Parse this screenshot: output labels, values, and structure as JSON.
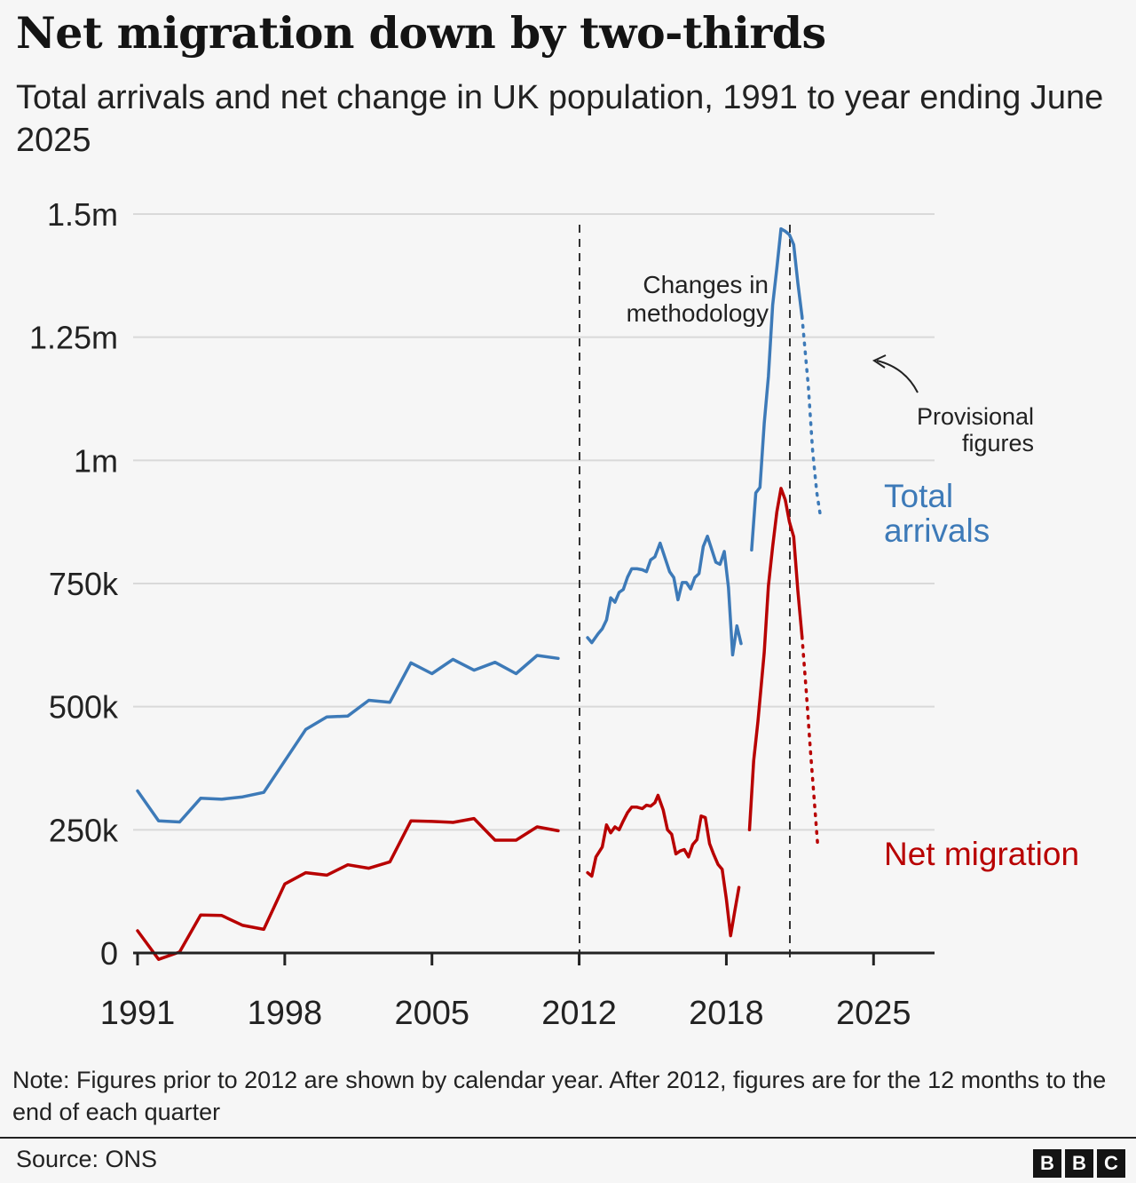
{
  "title": "Net migration down by two-thirds",
  "subtitle": "Total arrivals and net change in UK population, 1991 to year ending June 2025",
  "note": "Note: Figures prior to 2012 are shown by calendar year. After 2012, figures are for the 12 months to the end of each quarter",
  "source": "Source: ONS",
  "logo": [
    "B",
    "B",
    "C"
  ],
  "chart_data": {
    "type": "line",
    "y_ticks": [
      {
        "value": 0,
        "label": "0"
      },
      {
        "value": 250000,
        "label": "250k"
      },
      {
        "value": 500000,
        "label": "500k"
      },
      {
        "value": 750000,
        "label": "750k"
      },
      {
        "value": 1000000,
        "label": "1m"
      },
      {
        "value": 1250000,
        "label": "1.25m"
      },
      {
        "value": 1500000,
        "label": "1.5m"
      }
    ],
    "x_ticks": [
      {
        "value": 1991,
        "label": "1991"
      },
      {
        "value": 1998,
        "label": "1998"
      },
      {
        "value": 2005,
        "label": "2005"
      },
      {
        "value": 2012,
        "label": "2012"
      },
      {
        "value": 2019,
        "label": "2018"
      },
      {
        "value": 2026,
        "label": "2025"
      }
    ],
    "xlim": [
      1991,
      2028.9
    ],
    "ylim": [
      -30000,
      1500000
    ],
    "grid": true,
    "methodology_breaks": [
      2012,
      2022
    ],
    "methodology_label": [
      "Changes in",
      "methodology"
    ],
    "provisional_label": [
      "Provisional",
      "figures"
    ],
    "colors": {
      "arrivals": "#3d7ab8",
      "net": "#b80000",
      "grid": "#d9d9d9",
      "axis": "#222222"
    },
    "series": [
      {
        "name": "Total arrivals",
        "label_lines": [
          "Total",
          "arrivals"
        ],
        "color": "#3d7ab8",
        "segments": [
          [
            [
              1991,
              329000
            ],
            [
              1992,
              268000
            ],
            [
              1993,
              266000
            ],
            [
              1994,
              314000
            ],
            [
              1995,
              312000
            ],
            [
              1996,
              317000
            ],
            [
              1997,
              326000
            ],
            [
              1998,
              390000
            ],
            [
              1999,
              454000
            ],
            [
              2000,
              479000
            ],
            [
              2001,
              481000
            ],
            [
              2002,
              513000
            ],
            [
              2003,
              509000
            ],
            [
              2004,
              589000
            ],
            [
              2005,
              567000
            ],
            [
              2006,
              596000
            ],
            [
              2007,
              574000
            ],
            [
              2008,
              590000
            ],
            [
              2009,
              567000
            ],
            [
              2010,
              604000
            ],
            [
              2011,
              598000
            ]
          ],
          [
            [
              2012.4,
              640000
            ],
            [
              2012.6,
              630000
            ],
            [
              2012.9,
              648000
            ],
            [
              2013.1,
              658000
            ],
            [
              2013.3,
              676000
            ],
            [
              2013.5,
              721000
            ],
            [
              2013.7,
              712000
            ],
            [
              2013.9,
              732000
            ],
            [
              2014.1,
              738000
            ],
            [
              2014.3,
              763000
            ],
            [
              2014.5,
              780000
            ],
            [
              2014.75,
              780000
            ],
            [
              2015,
              778000
            ],
            [
              2015.2,
              774000
            ],
            [
              2015.4,
              798000
            ],
            [
              2015.6,
              804000
            ],
            [
              2015.85,
              832000
            ],
            [
              2016.1,
              800000
            ],
            [
              2016.3,
              774000
            ],
            [
              2016.5,
              762000
            ],
            [
              2016.7,
              717000
            ],
            [
              2016.9,
              752000
            ],
            [
              2017.1,
              752000
            ],
            [
              2017.3,
              739000
            ],
            [
              2017.5,
              762000
            ],
            [
              2017.7,
              770000
            ],
            [
              2017.9,
              825000
            ],
            [
              2018.1,
              846000
            ],
            [
              2018.3,
              820000
            ],
            [
              2018.5,
              793000
            ],
            [
              2018.7,
              789000
            ],
            [
              2018.9,
              815000
            ],
            [
              2019.1,
              742000
            ],
            [
              2019.3,
              605000
            ],
            [
              2019.5,
              664000
            ],
            [
              2019.7,
              628000
            ]
          ],
          [
            [
              2020.2,
              818000
            ],
            [
              2020.4,
              934000
            ],
            [
              2020.6,
              945000
            ],
            [
              2020.8,
              1075000
            ],
            [
              2021,
              1170000
            ],
            [
              2021.2,
              1315000
            ],
            [
              2021.4,
              1390000
            ],
            [
              2021.6,
              1470000
            ],
            [
              2021.8,
              1465000
            ],
            [
              2022,
              1458000
            ],
            [
              2022.2,
              1438000
            ],
            [
              2022.4,
              1360000
            ],
            [
              2022.6,
              1292000
            ]
          ]
        ],
        "provisional": [
          [
            2022.6,
            1292000
          ],
          [
            2022.9,
            1150000
          ],
          [
            2023.1,
            1020000
          ],
          [
            2023.3,
            935000
          ],
          [
            2023.45,
            893000
          ]
        ]
      },
      {
        "name": "Net migration",
        "label_lines": [
          "Net migration"
        ],
        "color": "#b80000",
        "segments": [
          [
            [
              1991,
              45000
            ],
            [
              1992,
              -13000
            ],
            [
              1993,
              2000
            ],
            [
              1994,
              77000
            ],
            [
              1995,
              76000
            ],
            [
              1996,
              56000
            ],
            [
              1997,
              48000
            ],
            [
              1998,
              140000
            ],
            [
              1999,
              163000
            ],
            [
              2000,
              158000
            ],
            [
              2001,
              179000
            ],
            [
              2002,
              172000
            ],
            [
              2003,
              185000
            ],
            [
              2004,
              268000
            ],
            [
              2005,
              267000
            ],
            [
              2006,
              265000
            ],
            [
              2007,
              273000
            ],
            [
              2008,
              229000
            ],
            [
              2009,
              229000
            ],
            [
              2010,
              256000
            ],
            [
              2011,
              248000
            ]
          ],
          [
            [
              2012.4,
              163000
            ],
            [
              2012.6,
              156000
            ],
            [
              2012.8,
              195000
            ],
            [
              2013.1,
              215000
            ],
            [
              2013.3,
              260000
            ],
            [
              2013.5,
              244000
            ],
            [
              2013.7,
              256000
            ],
            [
              2013.9,
              250000
            ],
            [
              2014.1,
              268000
            ],
            [
              2014.3,
              285000
            ],
            [
              2014.5,
              296000
            ],
            [
              2014.75,
              296000
            ],
            [
              2015,
              293000
            ],
            [
              2015.2,
              300000
            ],
            [
              2015.4,
              298000
            ],
            [
              2015.6,
              305000
            ],
            [
              2015.75,
              320000
            ],
            [
              2016,
              290000
            ],
            [
              2016.2,
              250000
            ],
            [
              2016.4,
              241000
            ],
            [
              2016.6,
              201000
            ],
            [
              2016.8,
              207000
            ],
            [
              2017,
              210000
            ],
            [
              2017.2,
              195000
            ],
            [
              2017.4,
              220000
            ],
            [
              2017.6,
              230000
            ],
            [
              2017.8,
              278000
            ],
            [
              2018,
              275000
            ],
            [
              2018.2,
              222000
            ],
            [
              2018.4,
              200000
            ],
            [
              2018.6,
              180000
            ],
            [
              2018.8,
              170000
            ],
            [
              2019,
              110000
            ],
            [
              2019.2,
              35000
            ],
            [
              2019.4,
              85000
            ],
            [
              2019.6,
              133000
            ]
          ],
          [
            [
              2020.1,
              250000
            ],
            [
              2020.3,
              390000
            ],
            [
              2020.5,
              470000
            ],
            [
              2020.8,
              610000
            ],
            [
              2021,
              745000
            ],
            [
              2021.2,
              825000
            ],
            [
              2021.4,
              895000
            ],
            [
              2021.6,
              943000
            ],
            [
              2021.8,
              920000
            ],
            [
              2022,
              875000
            ],
            [
              2022.2,
              845000
            ],
            [
              2022.4,
              735000
            ],
            [
              2022.6,
              642000
            ]
          ]
        ],
        "provisional": [
          [
            2022.6,
            642000
          ],
          [
            2022.8,
            530000
          ],
          [
            2023,
            410000
          ],
          [
            2023.2,
            300000
          ],
          [
            2023.35,
            215000
          ]
        ]
      }
    ]
  }
}
